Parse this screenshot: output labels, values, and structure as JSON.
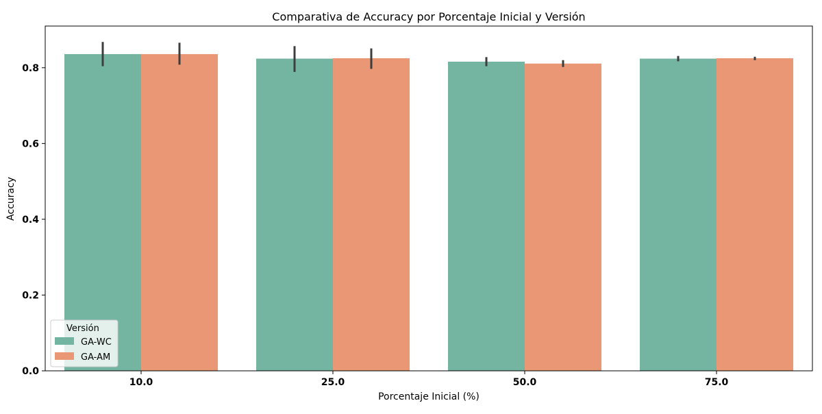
{
  "chart_data": {
    "type": "bar",
    "title": "Comparativa de Accuracy por Porcentaje Inicial y Versión",
    "xlabel": "Porcentaje Inicial (%)",
    "ylabel": "Accuracy",
    "categories": [
      "10.0",
      "25.0",
      "50.0",
      "75.0"
    ],
    "ylim": [
      0,
      0.91
    ],
    "yticks": [
      "0.0",
      "0.2",
      "0.4",
      "0.6",
      "0.8"
    ],
    "legend": {
      "title": "Versión",
      "position": "lower-left"
    },
    "grid": false,
    "series": [
      {
        "name": "GA-WC",
        "color": "#74b5a2",
        "values": [
          0.836,
          0.824,
          0.816,
          0.824
        ],
        "err_low": [
          0.804,
          0.789,
          0.804,
          0.817
        ],
        "err_high": [
          0.868,
          0.857,
          0.828,
          0.831
        ]
      },
      {
        "name": "GA-AM",
        "color": "#e99774",
        "values": [
          0.836,
          0.825,
          0.811,
          0.825
        ],
        "err_low": [
          0.808,
          0.797,
          0.802,
          0.82
        ],
        "err_high": [
          0.866,
          0.851,
          0.82,
          0.829
        ]
      }
    ]
  }
}
